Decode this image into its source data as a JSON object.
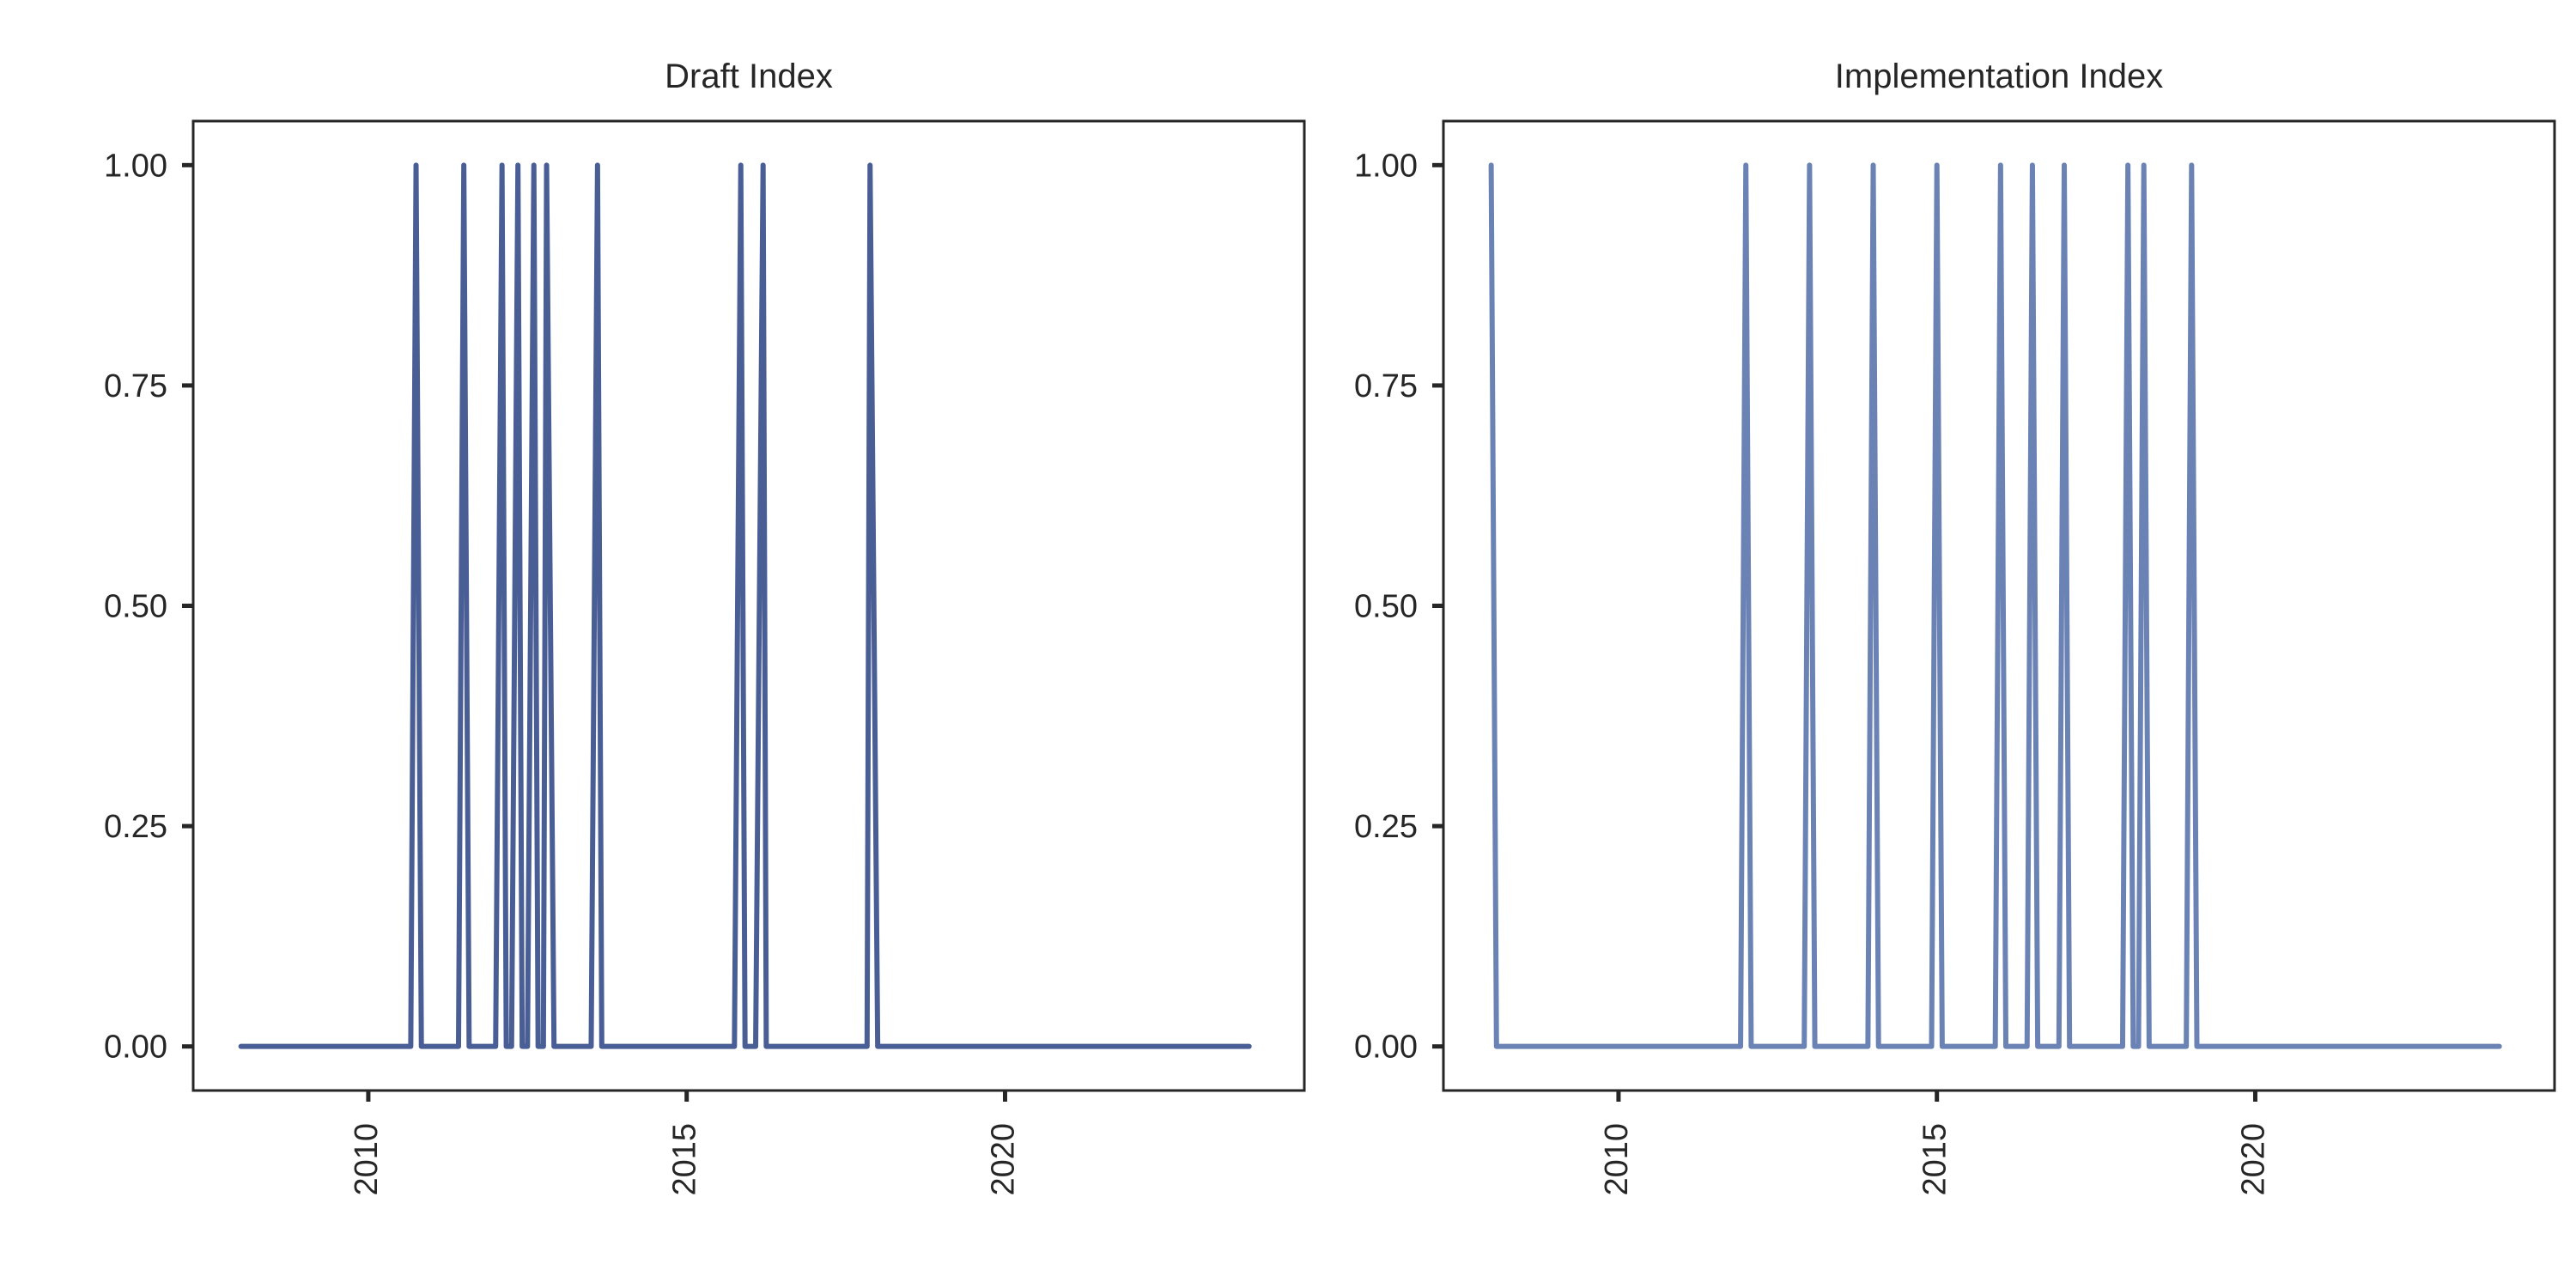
{
  "chart_data": [
    {
      "type": "line",
      "title": "Draft Index",
      "xlabel": "",
      "ylabel": "",
      "x_ticks": [
        2010,
        2015,
        2020
      ],
      "y_ticks": [
        "0.00",
        "0.25",
        "0.50",
        "0.75",
        "1.00"
      ],
      "xlim": [
        2007.25,
        2024.7
      ],
      "ylim": [
        -0.05,
        1.05
      ],
      "color": "#4a5e96",
      "grid": false,
      "x_range": [
        2008.0,
        2023.9
      ],
      "x_step": 0.0833333333,
      "spikes": [
        2010.75,
        2011.5,
        2012.1,
        2012.35,
        2012.6,
        2012.8,
        2013.6,
        2015.85,
        2016.2,
        2017.88
      ]
    },
    {
      "type": "line",
      "title": "Implementation Index",
      "xlabel": "",
      "ylabel": "",
      "x_ticks": [
        2010,
        2015,
        2020
      ],
      "y_ticks": [
        "0.00",
        "0.25",
        "0.50",
        "0.75",
        "1.00"
      ],
      "xlim": [
        2007.25,
        2024.7
      ],
      "ylim": [
        -0.05,
        1.05
      ],
      "color": "#6a83b4",
      "grid": false,
      "x_range": [
        2008.0,
        2023.9
      ],
      "x_step": 0.0833333333,
      "spikes": [
        2008.0,
        2012.0,
        2013.0,
        2014.0,
        2015.0,
        2016.0,
        2016.5,
        2017.0,
        2018.0,
        2018.25,
        2019.0
      ]
    }
  ]
}
